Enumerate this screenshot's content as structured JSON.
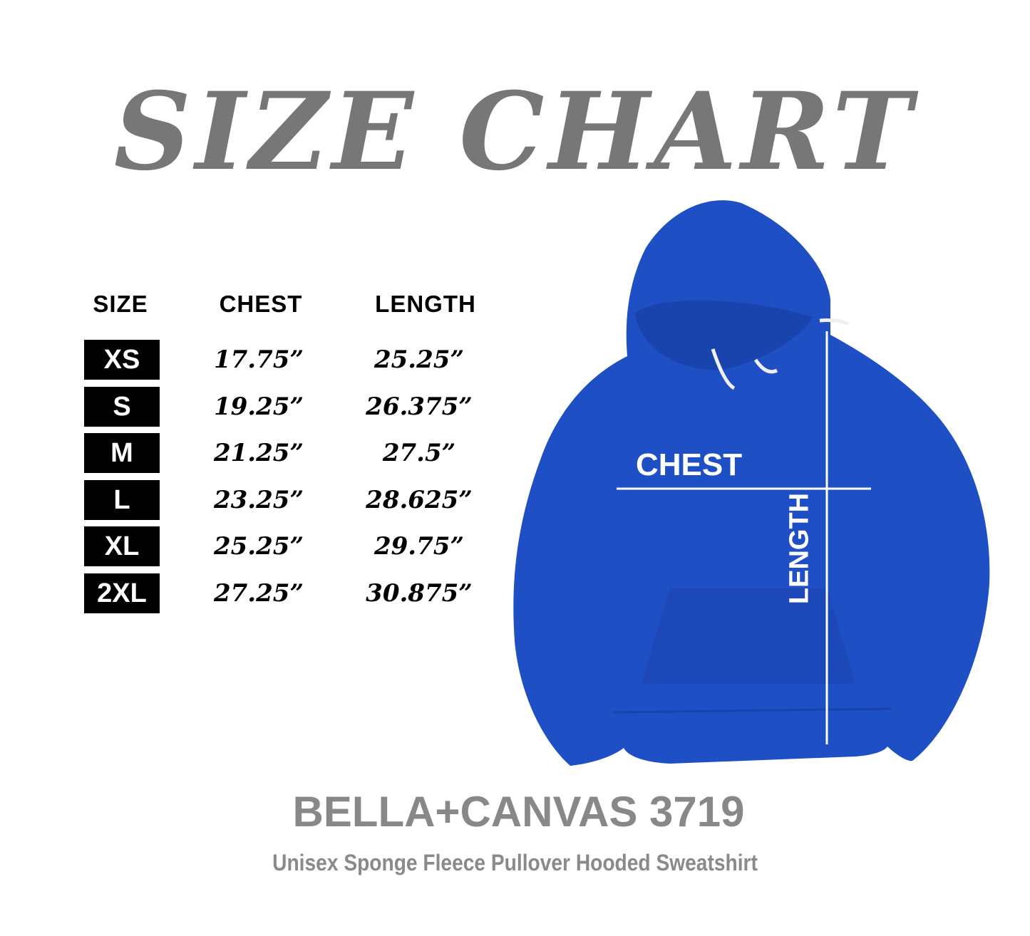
{
  "title": "SIZE CHART",
  "table": {
    "headers": {
      "size": "SIZE",
      "chest": "CHEST",
      "length": "LENGTH"
    },
    "rows": [
      {
        "size": "XS",
        "chest": "17.75”",
        "length": "25.25”"
      },
      {
        "size": "S",
        "chest": "19.25”",
        "length": "26.375”"
      },
      {
        "size": "M",
        "chest": "21.25”",
        "length": "27.5”"
      },
      {
        "size": "L",
        "chest": "23.25”",
        "length": "28.625”"
      },
      {
        "size": "XL",
        "chest": "25.25”",
        "length": "29.75”"
      },
      {
        "size": "2XL",
        "chest": "27.25”",
        "length": "30.875”"
      }
    ]
  },
  "diagram": {
    "chest_label": "CHEST",
    "length_label": "LENGTH",
    "garment_color": "#1f4fc4"
  },
  "brand": "BELLA+CANVAS 3719",
  "subtitle": "Unisex Sponge Fleece Pullover Hooded Sweatshirt"
}
